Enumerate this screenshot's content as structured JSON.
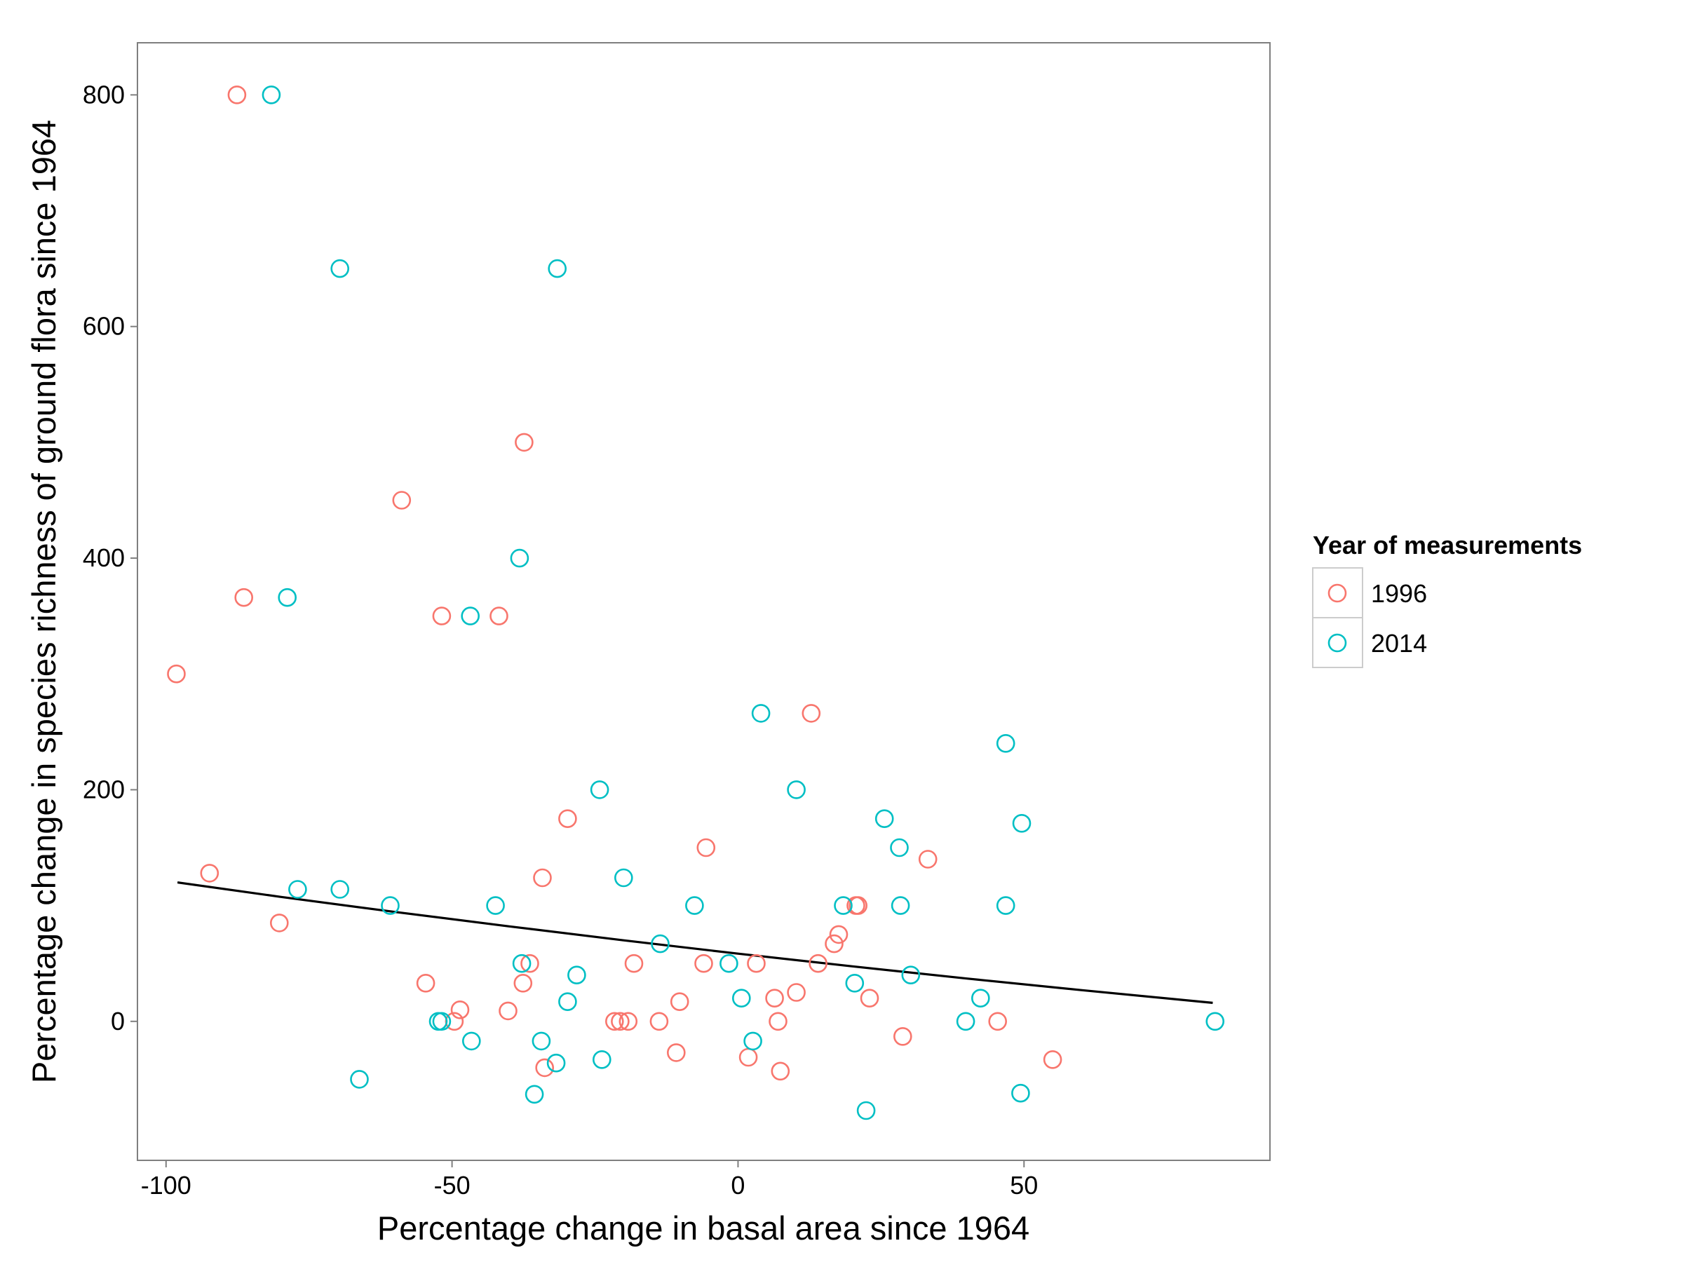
{
  "chart_data": {
    "type": "scatter",
    "title": "",
    "xlabel": "Percentage change in basal area since 1964",
    "ylabel": "Percentage change in species richness of ground flora since 1964",
    "xlim": [
      -105,
      93
    ],
    "ylim": [
      -120,
      845
    ],
    "x_ticks": [
      -100,
      -50,
      0,
      50
    ],
    "y_ticks": [
      0,
      200,
      400,
      600,
      800
    ],
    "grid": false,
    "legend": {
      "title": "Year of measurements",
      "position": "right"
    },
    "series": [
      {
        "name": "1996",
        "color": "#F8766D",
        "marker": "open-circle",
        "points": [
          [
            -87.6,
            800
          ],
          [
            -86.4,
            366
          ],
          [
            -98.2,
            300
          ],
          [
            -92.4,
            128
          ],
          [
            -80.2,
            85
          ],
          [
            -58.8,
            450
          ],
          [
            -51.8,
            350
          ],
          [
            -54.6,
            33
          ],
          [
            -48.6,
            10
          ],
          [
            -49.6,
            0
          ],
          [
            -41.8,
            350
          ],
          [
            -37.4,
            500
          ],
          [
            -40.2,
            9
          ],
          [
            -37.6,
            33
          ],
          [
            -36.4,
            50
          ],
          [
            -29.8,
            175
          ],
          [
            -34.2,
            124
          ],
          [
            -33.8,
            -40
          ],
          [
            -21.6,
            0
          ],
          [
            -20.6,
            0
          ],
          [
            -19.2,
            0
          ],
          [
            -18.2,
            50
          ],
          [
            -13.8,
            0
          ],
          [
            -10.8,
            -27
          ],
          [
            -10.2,
            17
          ],
          [
            -6.0,
            50
          ],
          [
            -5.6,
            150
          ],
          [
            1.8,
            -31
          ],
          [
            3.2,
            50
          ],
          [
            6.4,
            20
          ],
          [
            7.0,
            0
          ],
          [
            7.4,
            -43
          ],
          [
            10.2,
            25
          ],
          [
            12.8,
            266
          ],
          [
            14.0,
            50
          ],
          [
            16.8,
            67
          ],
          [
            17.6,
            75
          ],
          [
            20.6,
            100
          ],
          [
            21.0,
            100
          ],
          [
            23.0,
            20
          ],
          [
            28.8,
            -13
          ],
          [
            33.2,
            140
          ],
          [
            45.4,
            0
          ],
          [
            55.0,
            -33
          ]
        ]
      },
      {
        "name": "2014",
        "color": "#00BFC4",
        "marker": "open-circle",
        "points": [
          [
            -81.6,
            800
          ],
          [
            -69.6,
            650
          ],
          [
            -78.8,
            366
          ],
          [
            -77.0,
            114
          ],
          [
            -69.6,
            114
          ],
          [
            -60.8,
            100
          ],
          [
            -66.2,
            -50
          ],
          [
            -52.4,
            0
          ],
          [
            -51.8,
            0
          ],
          [
            -46.8,
            350
          ],
          [
            -46.6,
            -17
          ],
          [
            -42.4,
            100
          ],
          [
            -38.2,
            400
          ],
          [
            -37.8,
            50
          ],
          [
            -34.4,
            -17
          ],
          [
            -35.6,
            -63
          ],
          [
            -31.6,
            650
          ],
          [
            -31.8,
            -36
          ],
          [
            -29.8,
            17
          ],
          [
            -28.2,
            40
          ],
          [
            -24.2,
            200
          ],
          [
            -23.8,
            -33
          ],
          [
            -20.0,
            124
          ],
          [
            -13.6,
            67
          ],
          [
            -7.6,
            100
          ],
          [
            -1.6,
            50
          ],
          [
            0.6,
            20
          ],
          [
            2.6,
            -17
          ],
          [
            4.0,
            266
          ],
          [
            10.2,
            200
          ],
          [
            18.4,
            100
          ],
          [
            20.4,
            33
          ],
          [
            22.4,
            -77
          ],
          [
            25.6,
            175
          ],
          [
            28.2,
            150
          ],
          [
            28.4,
            100
          ],
          [
            30.2,
            40
          ],
          [
            39.8,
            0
          ],
          [
            42.4,
            20
          ],
          [
            46.8,
            240
          ],
          [
            46.8,
            100
          ],
          [
            49.6,
            171
          ],
          [
            49.4,
            -62
          ],
          [
            83.4,
            0
          ]
        ]
      }
    ],
    "fit_line": {
      "color": "#000000",
      "points": [
        [
          -98,
          120
        ],
        [
          -80,
          107.5
        ],
        [
          -60,
          94.5
        ],
        [
          -40,
          82
        ],
        [
          -20,
          70
        ],
        [
          0,
          58.5
        ],
        [
          20,
          47.5
        ],
        [
          40,
          37
        ],
        [
          60,
          27
        ],
        [
          83,
          16
        ]
      ]
    }
  }
}
